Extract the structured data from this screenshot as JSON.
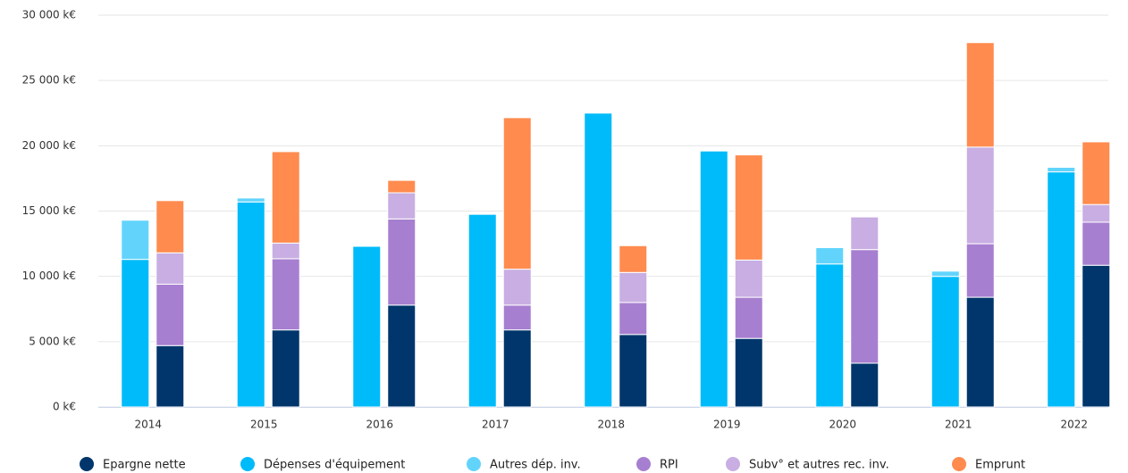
{
  "chart_data": {
    "type": "bar",
    "categories": [
      "2014",
      "2015",
      "2016",
      "2017",
      "2018",
      "2019",
      "2020",
      "2021",
      "2022"
    ],
    "series": [
      {
        "name": "Epargne nette",
        "color": "#00366b",
        "values": [
          4700,
          5900,
          7800,
          5900,
          5550,
          5250,
          3350,
          8400,
          10850
        ]
      },
      {
        "name": "Dépenses d'équipement",
        "color": "#00bbf9",
        "values": [
          11300,
          15700,
          12300,
          14750,
          22500,
          19600,
          10950,
          10000,
          18000
        ]
      },
      {
        "name": "Autres dép. inv.",
        "color": "#62d4fc",
        "values": [
          3000,
          300,
          0,
          0,
          0,
          0,
          1250,
          400,
          350
        ]
      },
      {
        "name": "RPI",
        "color": "#a77fd0",
        "values": [
          4700,
          5450,
          6600,
          1900,
          2450,
          3150,
          8700,
          4100,
          3300
        ]
      },
      {
        "name": "Subv° et autres rec. inv.",
        "color": "#c8aee2",
        "values": [
          2400,
          1200,
          2000,
          2750,
          2300,
          2850,
          2500,
          7400,
          1350
        ]
      },
      {
        "name": "Emprunt",
        "color": "#ff8b4f",
        "values": [
          4000,
          7000,
          950,
          11600,
          2050,
          8050,
          0,
          8000,
          4800
        ]
      }
    ],
    "ylim": [
      0,
      30000
    ],
    "yticks": [
      {
        "value": 0,
        "label": "0 k€"
      },
      {
        "value": 5000,
        "label": "5 000 k€"
      },
      {
        "value": 10000,
        "label": "10 000 k€"
      },
      {
        "value": 15000,
        "label": "15 000 k€"
      },
      {
        "value": 20000,
        "label": "20 000 k€"
      },
      {
        "value": 25000,
        "label": "25 000 k€"
      },
      {
        "value": 30000,
        "label": "30 000 k€"
      }
    ],
    "grid": true,
    "legend": "bottom"
  }
}
